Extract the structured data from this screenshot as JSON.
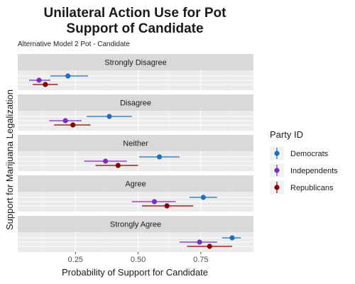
{
  "chart_data": {
    "type": "scatter",
    "title_lines": [
      "Unilateral Action Use for Pot",
      "Support of Candidate"
    ],
    "subtitle": "Alternative Model 2 Pot - Candidate",
    "xlabel": "Probability of Support for Candidate",
    "ylabel": "Support for Marijuana Legalization",
    "xlim": [
      0.02,
      0.96
    ],
    "x_ticks": [
      0.25,
      0.5,
      0.75
    ],
    "x_tick_labels": [
      "0.25",
      "0.50",
      "0.75"
    ],
    "grid": true,
    "facets": [
      "Strongly Disagree",
      "Disagree",
      "Neither",
      "Agree",
      "Strongly Agree"
    ],
    "legend": {
      "title": "Party ID",
      "position": "right",
      "entries": [
        "Democrats",
        "Independents",
        "Republicans"
      ]
    },
    "series": [
      {
        "name": "Democrats",
        "color": "#1f6fbf",
        "values": [
          0.22,
          0.385,
          0.585,
          0.76,
          0.875
        ],
        "lower": [
          0.15,
          0.295,
          0.505,
          0.705,
          0.835
        ],
        "upper": [
          0.3,
          0.475,
          0.665,
          0.815,
          0.91
        ]
      },
      {
        "name": "Independents",
        "color": "#7b2fbf",
        "values": [
          0.105,
          0.21,
          0.37,
          0.565,
          0.745
        ],
        "lower": [
          0.065,
          0.145,
          0.285,
          0.475,
          0.665
        ],
        "upper": [
          0.15,
          0.275,
          0.455,
          0.65,
          0.815
        ]
      },
      {
        "name": "Republicans",
        "color": "#8b0000",
        "values": [
          0.13,
          0.24,
          0.42,
          0.615,
          0.785
        ],
        "lower": [
          0.08,
          0.165,
          0.33,
          0.515,
          0.695
        ],
        "upper": [
          0.18,
          0.31,
          0.5,
          0.72,
          0.875
        ]
      }
    ]
  }
}
